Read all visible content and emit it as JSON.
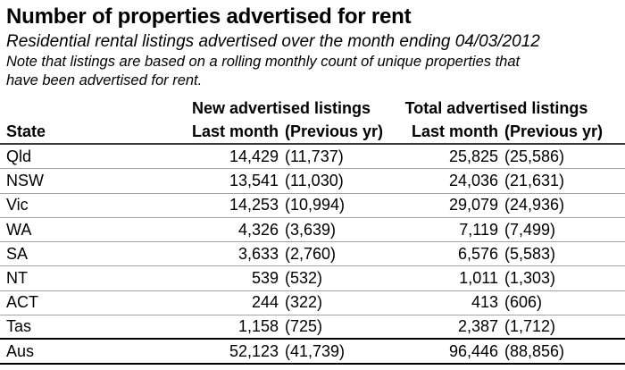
{
  "page": {
    "title": "Number of properties advertised for rent",
    "subtitle": "Residential rental listings advertised over the month ending 04/03/2012",
    "note_line1": "Note that listings are based on a rolling monthly count of unique properties that",
    "note_line2": "have been advertised for rent."
  },
  "table": {
    "column_groups": {
      "new": "New advertised listings",
      "total": "Total advertised listings"
    },
    "headers": {
      "state": "State",
      "last_month": "Last month",
      "previous_yr": "(Previous yr)"
    },
    "rows": [
      {
        "state": "Qld",
        "new_last": "14,429",
        "new_prev": "(11,737)",
        "total_last": "25,825",
        "total_prev": "(25,586)"
      },
      {
        "state": "NSW",
        "new_last": "13,541",
        "new_prev": "(11,030)",
        "total_last": "24,036",
        "total_prev": "(21,631)"
      },
      {
        "state": "Vic",
        "new_last": "14,253",
        "new_prev": "(10,994)",
        "total_last": "29,079",
        "total_prev": "(24,936)"
      },
      {
        "state": "WA",
        "new_last": "4,326",
        "new_prev": "(3,639)",
        "total_last": "7,119",
        "total_prev": "(7,499)"
      },
      {
        "state": "SA",
        "new_last": "3,633",
        "new_prev": "(2,760)",
        "total_last": "6,576",
        "total_prev": "(5,583)"
      },
      {
        "state": "NT",
        "new_last": "539",
        "new_prev": "(532)",
        "total_last": "1,011",
        "total_prev": "(1,303)"
      },
      {
        "state": "ACT",
        "new_last": "244",
        "new_prev": "(322)",
        "total_last": "413",
        "total_prev": "(606)"
      },
      {
        "state": "Tas",
        "new_last": "1,158",
        "new_prev": "(725)",
        "total_last": "2,387",
        "total_prev": "(1,712)"
      },
      {
        "state": "Aus",
        "new_last": "52,123",
        "new_prev": "(41,739)",
        "total_last": "96,446",
        "total_prev": "(88,856)"
      }
    ],
    "colors": {
      "row_separator": "#a3a3a3",
      "header_rule": "#3a3a3a",
      "strong_rule": "#000000"
    }
  }
}
